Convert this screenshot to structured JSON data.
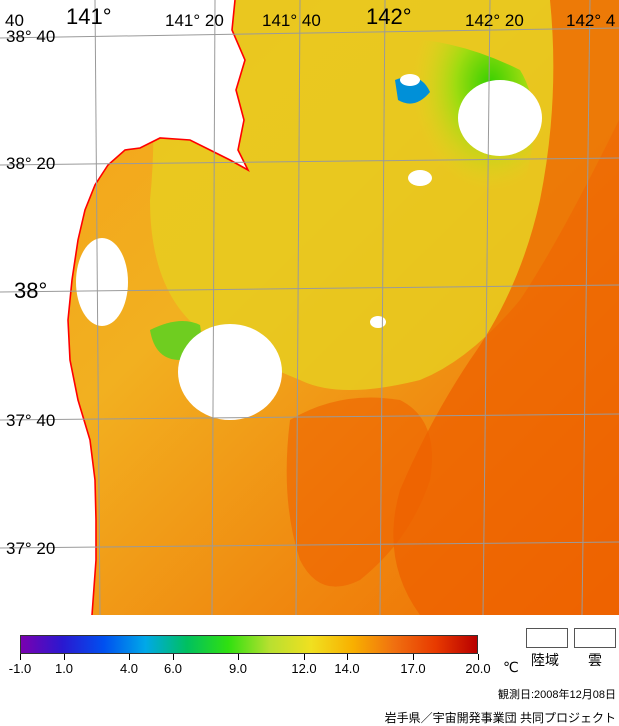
{
  "map": {
    "lon_labels": [
      "141°",
      "141° 20",
      "141° 40",
      "142°",
      "142° 20",
      "142° 4",
      "40"
    ],
    "lat_labels": [
      "38° 40",
      "38° 20",
      "38°",
      "37° 40",
      "37° 20"
    ],
    "colors": {
      "land": "#ffffff",
      "coastline": "#ff0000",
      "grid": "#9a9a9a"
    }
  },
  "legend": {
    "ticks": [
      {
        "label": "-1.0",
        "value": -1.0
      },
      {
        "label": "1.0",
        "value": 1.0
      },
      {
        "label": "4.0",
        "value": 4.0
      },
      {
        "label": "6.0",
        "value": 6.0
      },
      {
        "label": "9.0",
        "value": 9.0
      },
      {
        "label": "12.0",
        "value": 12.0
      },
      {
        "label": "14.0",
        "value": 14.0
      },
      {
        "label": "17.0",
        "value": 17.0
      },
      {
        "label": "20.0",
        "value": 20.0
      }
    ],
    "unit": "℃",
    "range": [
      -1.0,
      20.0
    ],
    "gradient": [
      "#7a00b0",
      "#2a18d0",
      "#0050f0",
      "#00a8e8",
      "#00c060",
      "#30e010",
      "#b8e030",
      "#f0e020",
      "#f8b000",
      "#f07010",
      "#e83a00",
      "#b80000"
    ],
    "land_label": "陸域",
    "cloud_label": "雲"
  },
  "footer": {
    "observation_date": "観測日:2008年12月08日",
    "credit": "岩手県／宇宙開発事業団 共同プロジェクト"
  }
}
